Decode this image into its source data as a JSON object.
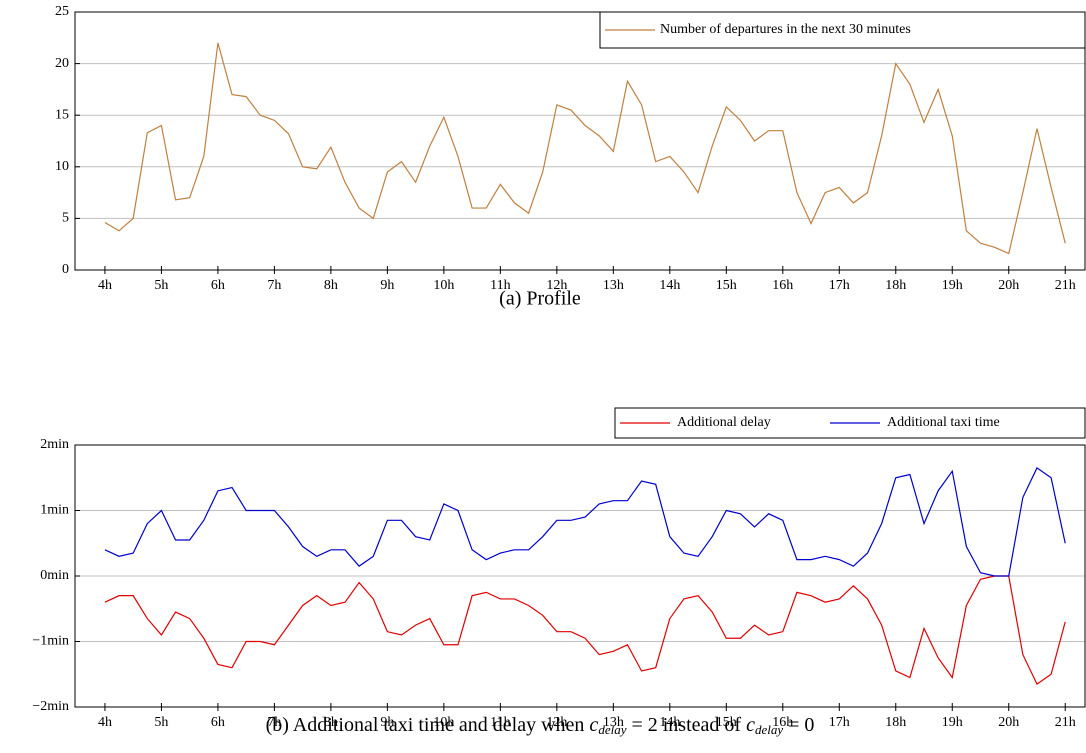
{
  "chart_data": [
    {
      "type": "line",
      "caption": "(a) Profile",
      "x": [
        4,
        4.25,
        4.5,
        4.75,
        5,
        5.25,
        5.5,
        5.75,
        6,
        6.25,
        6.5,
        6.75,
        7,
        7.25,
        7.5,
        7.75,
        8,
        8.25,
        8.5,
        8.75,
        9,
        9.25,
        9.5,
        9.75,
        10,
        10.25,
        10.5,
        10.75,
        11,
        11.25,
        11.5,
        11.75,
        12,
        12.25,
        12.5,
        12.75,
        13,
        13.25,
        13.5,
        13.75,
        14,
        14.25,
        14.5,
        14.75,
        15,
        15.25,
        15.5,
        15.75,
        16,
        16.25,
        16.5,
        16.75,
        17,
        17.25,
        17.5,
        17.75,
        18,
        18.25,
        18.5,
        18.75,
        19,
        19.25,
        19.5,
        19.75,
        20,
        20.25,
        20.5,
        20.75,
        21
      ],
      "series": [
        {
          "name": "Number of departures in the next 30 minutes",
          "color": "#bf8040",
          "values": [
            4.6,
            3.8,
            5.0,
            13.3,
            14.0,
            6.8,
            7.0,
            11.0,
            22,
            17.0,
            16.8,
            15.0,
            14.5,
            13.2,
            10.0,
            9.8,
            11.9,
            8.5,
            6.0,
            5.0,
            9.5,
            10.5,
            8.5,
            12.0,
            14.8,
            11.0,
            6.0,
            6.0,
            8.3,
            6.5,
            5.5,
            9.5,
            16.0,
            15.5,
            14.0,
            13.0,
            11.5,
            18.3,
            16.0,
            10.5,
            11.0,
            9.5,
            7.5,
            12.0,
            15.8,
            14.5,
            12.5,
            13.5,
            13.5,
            7.5,
            4.5,
            7.5,
            8.0,
            6.5,
            7.5,
            13.0,
            20.0,
            18.0,
            14.3,
            17.5,
            13.0,
            3.8,
            2.6,
            2.2,
            1.6,
            7.5,
            13.7,
            8.0,
            2.6
          ]
        }
      ],
      "xlim": [
        3.47,
        21.35
      ],
      "xticks": [
        {
          "value": 4,
          "label": "4h"
        },
        {
          "value": 5,
          "label": "5h"
        },
        {
          "value": 6,
          "label": "6h"
        },
        {
          "value": 7,
          "label": "7h"
        },
        {
          "value": 8,
          "label": "8h"
        },
        {
          "value": 9,
          "label": "9h"
        },
        {
          "value": 10,
          "label": "10h"
        },
        {
          "value": 11,
          "label": "11h"
        },
        {
          "value": 12,
          "label": "12h"
        },
        {
          "value": 13,
          "label": "13h"
        },
        {
          "value": 14,
          "label": "14h"
        },
        {
          "value": 15,
          "label": "15h"
        },
        {
          "value": 16,
          "label": "16h"
        },
        {
          "value": 17,
          "label": "17h"
        },
        {
          "value": 18,
          "label": "18h"
        },
        {
          "value": 19,
          "label": "19h"
        },
        {
          "value": 20,
          "label": "20h"
        },
        {
          "value": 21,
          "label": "21h"
        }
      ],
      "ylim": [
        0,
        25
      ],
      "yticks": [
        0,
        5,
        10,
        15,
        20,
        25
      ],
      "grid": true,
      "legend": "upper right"
    },
    {
      "type": "line",
      "caption": [
        "(b) Additional taxi time and delay when",
        "c",
        "delay",
        "= 2 instead of",
        "c",
        "delay",
        "= 0"
      ],
      "x": [
        4,
        4.25,
        4.5,
        4.75,
        5,
        5.25,
        5.5,
        5.75,
        6,
        6.25,
        6.5,
        6.75,
        7,
        7.25,
        7.5,
        7.75,
        8,
        8.25,
        8.5,
        8.75,
        9,
        9.25,
        9.5,
        9.75,
        10,
        10.25,
        10.5,
        10.75,
        11,
        11.25,
        11.5,
        11.75,
        12,
        12.25,
        12.5,
        12.75,
        13,
        13.25,
        13.5,
        13.75,
        14,
        14.25,
        14.5,
        14.75,
        15,
        15.25,
        15.5,
        15.75,
        16,
        16.25,
        16.5,
        16.75,
        17,
        17.25,
        17.5,
        17.75,
        18,
        18.25,
        18.5,
        18.75,
        19,
        19.25,
        19.5,
        19.75,
        20,
        20.25,
        20.5,
        20.75,
        21
      ],
      "series": [
        {
          "name": "Additional delay",
          "color": "#e00000",
          "values": [
            -0.4,
            -0.3,
            -0.3,
            -0.65,
            -0.9,
            -0.55,
            -0.65,
            -0.95,
            -1.35,
            -1.4,
            -1.0,
            -1.0,
            -1.05,
            -0.75,
            -0.45,
            -0.3,
            -0.45,
            -0.4,
            -0.1,
            -0.35,
            -0.85,
            -0.9,
            -0.75,
            -0.65,
            -1.05,
            -1.05,
            -0.3,
            -0.25,
            -0.35,
            -0.35,
            -0.45,
            -0.6,
            -0.85,
            -0.85,
            -0.95,
            -1.2,
            -1.15,
            -1.05,
            -1.45,
            -1.4,
            -0.65,
            -0.35,
            -0.3,
            -0.55,
            -0.95,
            -0.95,
            -0.75,
            -0.9,
            -0.85,
            -0.25,
            -0.3,
            -0.4,
            -0.35,
            -0.15,
            -0.35,
            -0.75,
            -1.45,
            -1.55,
            -0.8,
            -1.25,
            -1.55,
            -0.45,
            -0.05,
            0,
            0,
            -1.2,
            -1.65,
            -1.5,
            -0.7
          ]
        },
        {
          "name": "Additional taxi time",
          "color": "#0000cc",
          "values": [
            0.4,
            0.3,
            0.35,
            0.8,
            1.0,
            0.55,
            0.55,
            0.85,
            1.3,
            1.35,
            1.0,
            1.0,
            1.0,
            0.75,
            0.45,
            0.3,
            0.4,
            0.4,
            0.15,
            0.3,
            0.85,
            0.85,
            0.6,
            0.55,
            1.1,
            1.0,
            0.4,
            0.25,
            0.35,
            0.4,
            0.4,
            0.6,
            0.85,
            0.85,
            0.9,
            1.1,
            1.15,
            1.15,
            1.45,
            1.4,
            0.6,
            0.35,
            0.3,
            0.6,
            1.0,
            0.95,
            0.75,
            0.95,
            0.85,
            0.25,
            0.25,
            0.3,
            0.25,
            0.15,
            0.35,
            0.8,
            1.5,
            1.55,
            0.8,
            1.3,
            1.6,
            0.45,
            0.05,
            0,
            0,
            1.2,
            1.65,
            1.5,
            0.5
          ]
        }
      ],
      "xlim": [
        3.47,
        21.35
      ],
      "xticks": [
        {
          "value": 4,
          "label": "4h"
        },
        {
          "value": 5,
          "label": "5h"
        },
        {
          "value": 6,
          "label": "6h"
        },
        {
          "value": 7,
          "label": "7h"
        },
        {
          "value": 8,
          "label": "8h"
        },
        {
          "value": 9,
          "label": "9h"
        },
        {
          "value": 10,
          "label": "10h"
        },
        {
          "value": 11,
          "label": "11h"
        },
        {
          "value": 12,
          "label": "12h"
        },
        {
          "value": 13,
          "label": "13h"
        },
        {
          "value": 14,
          "label": "14h"
        },
        {
          "value": 15,
          "label": "15h"
        },
        {
          "value": 16,
          "label": "16h"
        },
        {
          "value": 17,
          "label": "17h"
        },
        {
          "value": 18,
          "label": "18h"
        },
        {
          "value": 19,
          "label": "19h"
        },
        {
          "value": 20,
          "label": "20h"
        },
        {
          "value": 21,
          "label": "21h"
        }
      ],
      "ylim": [
        -2,
        2
      ],
      "yticks": [
        {
          "value": -2,
          "label": "−2min"
        },
        {
          "value": -1,
          "label": "−1min"
        },
        {
          "value": 0,
          "label": "0min"
        },
        {
          "value": 1,
          "label": "1min"
        },
        {
          "value": 2,
          "label": "2min"
        }
      ],
      "grid": true,
      "legend": "above right"
    }
  ]
}
